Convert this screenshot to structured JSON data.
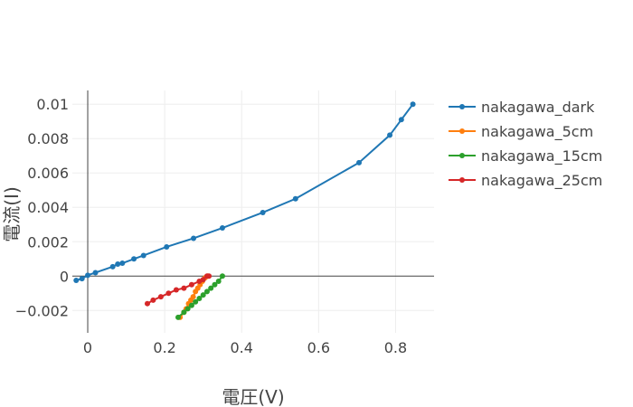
{
  "chart_data": {
    "type": "line",
    "xlabel": "電圧(V)",
    "ylabel": "電流(I)",
    "xlim": [
      -0.04,
      0.9
    ],
    "ylim": [
      -0.0033,
      0.0108
    ],
    "x_ticks": [
      0,
      0.2,
      0.4,
      0.6,
      0.8
    ],
    "x_tick_labels": [
      "0",
      "0.2",
      "0.4",
      "0.6",
      "0.8"
    ],
    "y_ticks": [
      -0.002,
      0,
      0.002,
      0.004,
      0.006,
      0.008,
      0.01
    ],
    "y_tick_labels": [
      "−0.002",
      "0",
      "0.002",
      "0.004",
      "0.006",
      "0.008",
      "0.01"
    ],
    "grid": true,
    "legend_position": "right",
    "series": [
      {
        "name": "nakagawa_dark",
        "color": "#1f77b4",
        "x": [
          -0.03,
          -0.015,
          0,
          0.02,
          0.065,
          0.078,
          0.09,
          0.12,
          0.145,
          0.205,
          0.275,
          0.35,
          0.455,
          0.54,
          0.705,
          0.785,
          0.815,
          0.845
        ],
        "y": [
          -0.00025,
          -0.00015,
          5e-05,
          0.0002,
          0.00055,
          0.0007,
          0.00075,
          0.001,
          0.0012,
          0.0017,
          0.0022,
          0.0028,
          0.0037,
          0.0045,
          0.0066,
          0.0082,
          0.0091,
          0.01
        ]
      },
      {
        "name": "nakagawa_5cm",
        "color": "#ff7f0e",
        "x": [
          0.24,
          0.25,
          0.256,
          0.262,
          0.268,
          0.274,
          0.28,
          0.286,
          0.292,
          0.298,
          0.305,
          0.312
        ],
        "y": [
          -0.0024,
          -0.0021,
          -0.0019,
          -0.0016,
          -0.0014,
          -0.0012,
          -0.0009,
          -0.0007,
          -0.0005,
          -0.0003,
          -0.0001,
          0
        ]
      },
      {
        "name": "nakagawa_15cm",
        "color": "#2ca02c",
        "x": [
          0.235,
          0.25,
          0.26,
          0.27,
          0.28,
          0.29,
          0.3,
          0.31,
          0.32,
          0.33,
          0.34,
          0.35
        ],
        "y": [
          -0.0024,
          -0.0021,
          -0.0019,
          -0.0017,
          -0.0015,
          -0.0013,
          -0.0011,
          -0.0009,
          -0.0007,
          -0.0005,
          -0.0003,
          0
        ]
      },
      {
        "name": "nakagawa_25cm",
        "color": "#d62728",
        "x": [
          0.155,
          0.17,
          0.19,
          0.21,
          0.23,
          0.25,
          0.27,
          0.29,
          0.3,
          0.31,
          0.315
        ],
        "y": [
          -0.0016,
          -0.0014,
          -0.0012,
          -0.001,
          -0.0008,
          -0.0007,
          -0.0005,
          -0.0003,
          -0.0002,
          0,
          0
        ]
      }
    ]
  }
}
